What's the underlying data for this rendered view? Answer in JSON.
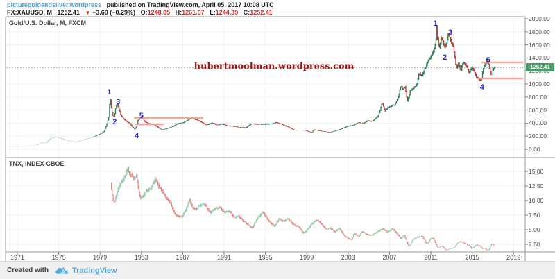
{
  "header": {
    "site": "picturegoldandsilver.wordpress",
    "published": "published on TradingView.com, April 05, 2017 10:08 UTC",
    "symbol": "FX:XAUUSD, M",
    "last": "1252.41",
    "down_triangle": "▼",
    "change": "−3.60 (−0.29%)",
    "open_label": "O:",
    "open": "1248.05",
    "high_label": "H:",
    "high": "1261.07",
    "low_label": "L:",
    "low": "1244.39",
    "close_label": "C:",
    "close": "1252.41"
  },
  "panels": {
    "gold_title": "Gold/U.S. Dollar, M, FXCM",
    "tnx_title": "TNX, INDEX-CBOE",
    "watermark": "hubertmoolman.wordpress.com",
    "current_price_label": "1252.41"
  },
  "footer": {
    "created_with": "Created with",
    "brand": "TradingView"
  },
  "colors": {
    "accent_link": "#47a1dc",
    "ohlc_red": "#cc2b29",
    "chip_green": "#4a9b68",
    "up_candle": "#2a7a52",
    "down_candle": "#a83b33",
    "tnx_up": "#8cc3a4",
    "tnx_down": "#dd837b",
    "level_line": "#f59a91",
    "current_price_line": "#3f9d6f",
    "wave_label": "#2028d4",
    "watermark": "#a31515",
    "grid": "#edf0f3",
    "border": "#9a9a9a"
  },
  "chart_data": [
    {
      "type": "line",
      "title": "Gold/U.S. Dollar, M, FXCM",
      "symbol": "FX:XAUUSD",
      "interval": "M",
      "exchange": "FXCM",
      "xlabel": "",
      "ylabel": "",
      "x_range": [
        1970,
        2020.5
      ],
      "ylim": [
        0,
        2100
      ],
      "y_ticks": [
        2000,
        1800,
        1600,
        1400,
        1200,
        1000,
        800,
        600,
        400,
        200,
        0
      ],
      "x_ticks": [
        1971,
        1975,
        1979,
        1983,
        1987,
        1991,
        1995,
        1999,
        2003,
        2007,
        2011,
        2015,
        2019
      ],
      "grid": true,
      "current_price": 1252.41,
      "series": [
        [
          1970.0,
          36
        ],
        [
          1970.8,
          38
        ],
        [
          1971.5,
          41
        ],
        [
          1972.0,
          46
        ],
        [
          1972.5,
          55
        ],
        [
          1973.0,
          68
        ],
        [
          1973.5,
          100
        ],
        [
          1973.8,
          95
        ],
        [
          1974.3,
          165
        ],
        [
          1974.9,
          185
        ],
        [
          1975.3,
          170
        ],
        [
          1975.7,
          140
        ],
        [
          1976.2,
          128
        ],
        [
          1976.7,
          105
        ],
        [
          1977.2,
          135
        ],
        [
          1977.8,
          160
        ],
        [
          1978.3,
          180
        ],
        [
          1978.8,
          215
        ],
        [
          1979.2,
          240
        ],
        [
          1979.5,
          280
        ],
        [
          1979.75,
          390
        ],
        [
          1979.95,
          510
        ],
        [
          1980.04,
          830
        ],
        [
          1980.15,
          650
        ],
        [
          1980.3,
          520
        ],
        [
          1980.45,
          495
        ],
        [
          1980.6,
          640
        ],
        [
          1980.72,
          700
        ],
        [
          1980.9,
          625
        ],
        [
          1981.1,
          520
        ],
        [
          1981.4,
          460
        ],
        [
          1981.7,
          420
        ],
        [
          1981.95,
          400
        ],
        [
          1982.2,
          345
        ],
        [
          1982.45,
          305
        ],
        [
          1982.6,
          350
        ],
        [
          1982.75,
          440
        ],
        [
          1983.1,
          505
        ],
        [
          1983.4,
          425
        ],
        [
          1983.8,
          390
        ],
        [
          1984.2,
          385
        ],
        [
          1984.6,
          345
        ],
        [
          1985.1,
          295
        ],
        [
          1985.6,
          320
        ],
        [
          1986.1,
          345
        ],
        [
          1986.6,
          395
        ],
        [
          1987.1,
          405
        ],
        [
          1987.6,
          450
        ],
        [
          1987.95,
          485
        ],
        [
          1988.4,
          450
        ],
        [
          1988.9,
          415
        ],
        [
          1989.4,
          370
        ],
        [
          1989.9,
          405
        ],
        [
          1990.4,
          370
        ],
        [
          1990.9,
          385
        ],
        [
          1991.4,
          360
        ],
        [
          1992.0,
          350
        ],
        [
          1992.6,
          335
        ],
        [
          1993.2,
          330
        ],
        [
          1993.7,
          390
        ],
        [
          1994.3,
          380
        ],
        [
          1995.0,
          380
        ],
        [
          1995.7,
          388
        ],
        [
          1996.1,
          412
        ],
        [
          1996.7,
          380
        ],
        [
          1997.3,
          340
        ],
        [
          1997.9,
          290
        ],
        [
          1998.5,
          295
        ],
        [
          1999.0,
          285
        ],
        [
          1999.55,
          255
        ],
        [
          1999.8,
          300
        ],
        [
          2000.2,
          285
        ],
        [
          2000.8,
          270
        ],
        [
          2001.3,
          260
        ],
        [
          2001.8,
          278
        ],
        [
          2002.4,
          310
        ],
        [
          2003.0,
          350
        ],
        [
          2003.6,
          370
        ],
        [
          2004.1,
          410
        ],
        [
          2004.6,
          395
        ],
        [
          2004.95,
          440
        ],
        [
          2005.4,
          425
        ],
        [
          2005.9,
          495
        ],
        [
          2006.1,
          560
        ],
        [
          2006.38,
          715
        ],
        [
          2006.65,
          580
        ],
        [
          2006.9,
          635
        ],
        [
          2007.3,
          665
        ],
        [
          2007.6,
          680
        ],
        [
          2007.9,
          790
        ],
        [
          2008.2,
          975
        ],
        [
          2008.35,
          915
        ],
        [
          2008.6,
          960
        ],
        [
          2008.82,
          725
        ],
        [
          2009.1,
          900
        ],
        [
          2009.4,
          930
        ],
        [
          2009.75,
          1000
        ],
        [
          2009.95,
          1175
        ],
        [
          2010.2,
          1115
        ],
        [
          2010.5,
          1230
        ],
        [
          2010.9,
          1385
        ],
        [
          2011.1,
          1420
        ],
        [
          2011.35,
          1510
        ],
        [
          2011.55,
          1620
        ],
        [
          2011.68,
          1900
        ],
        [
          2011.78,
          1620
        ],
        [
          2011.92,
          1560
        ],
        [
          2012.1,
          1720
        ],
        [
          2012.35,
          1600
        ],
        [
          2012.5,
          1570
        ],
        [
          2012.78,
          1780
        ],
        [
          2013.0,
          1665
        ],
        [
          2013.25,
          1570
        ],
        [
          2013.45,
          1380
        ],
        [
          2013.55,
          1230
        ],
        [
          2013.75,
          1320
        ],
        [
          2013.95,
          1195
        ],
        [
          2014.2,
          1330
        ],
        [
          2014.5,
          1290
        ],
        [
          2014.8,
          1170
        ],
        [
          2015.05,
          1265
        ],
        [
          2015.3,
          1180
        ],
        [
          2015.55,
          1095
        ],
        [
          2015.95,
          1050
        ],
        [
          2016.15,
          1235
        ],
        [
          2016.5,
          1360
        ],
        [
          2016.65,
          1310
        ],
        [
          2016.85,
          1170
        ],
        [
          2016.98,
          1130
        ],
        [
          2017.1,
          1235
        ],
        [
          2017.2,
          1245
        ],
        [
          2017.3,
          1252
        ]
      ],
      "annotations": [
        {
          "label": "1",
          "year": 1979.88,
          "value": 870
        },
        {
          "label": "2",
          "year": 1980.42,
          "value": 410
        },
        {
          "label": "3",
          "year": 1980.75,
          "value": 720
        },
        {
          "label": "4",
          "year": 1982.55,
          "value": 205
        },
        {
          "label": "5",
          "year": 1983.0,
          "value": 515
        },
        {
          "label": "1",
          "year": 2011.45,
          "value": 1930
        },
        {
          "label": "2",
          "year": 2012.35,
          "value": 1405
        },
        {
          "label": "3",
          "year": 2012.9,
          "value": 1790
        },
        {
          "label": "4",
          "year": 2015.95,
          "value": 950
        },
        {
          "label": "5",
          "year": 2016.55,
          "value": 1365
        }
      ],
      "levels": [
        {
          "value": 480,
          "from": 1982.3,
          "to": 1989.0
        },
        {
          "value": 380,
          "from": 1982.4,
          "to": 1985.15
        },
        {
          "value": 1330,
          "from": 2015.9,
          "to": 2019.95
        },
        {
          "value": 1085,
          "from": 2015.55,
          "to": 2019.95
        }
      ]
    },
    {
      "type": "line",
      "title": "TNX, INDEX-CBOE",
      "symbol": "TNX",
      "exchange": "INDEX-CBOE",
      "xlabel": "",
      "ylabel": "",
      "x_range": [
        1970,
        2020.5
      ],
      "ylim": [
        0,
        16.5
      ],
      "y_ticks": [
        15,
        12.5,
        10,
        7.5,
        5,
        2.5
      ],
      "x_ticks": [
        1971,
        1975,
        1979,
        1983,
        1987,
        1991,
        1995,
        1999,
        2003,
        2007,
        2011,
        2015,
        2019
      ],
      "grid": true,
      "series": [
        [
          1980.1,
          12.8
        ],
        [
          1980.25,
          11.0
        ],
        [
          1980.45,
          9.6
        ],
        [
          1980.65,
          10.8
        ],
        [
          1980.95,
          12.6
        ],
        [
          1981.2,
          13.2
        ],
        [
          1981.45,
          14.0
        ],
        [
          1981.6,
          14.8
        ],
        [
          1981.75,
          15.6
        ],
        [
          1981.9,
          14.6
        ],
        [
          1982.1,
          14.4
        ],
        [
          1982.35,
          13.8
        ],
        [
          1982.6,
          14.2
        ],
        [
          1982.8,
          12.0
        ],
        [
          1982.95,
          10.5
        ],
        [
          1983.2,
          10.6
        ],
        [
          1983.6,
          11.7
        ],
        [
          1984.0,
          12.1
        ],
        [
          1984.45,
          13.8
        ],
        [
          1984.8,
          12.3
        ],
        [
          1985.1,
          11.6
        ],
        [
          1985.5,
          10.4
        ],
        [
          1985.9,
          9.6
        ],
        [
          1986.3,
          7.7
        ],
        [
          1986.7,
          7.3
        ],
        [
          1987.0,
          7.2
        ],
        [
          1987.4,
          8.5
        ],
        [
          1987.75,
          10.2
        ],
        [
          1988.0,
          8.8
        ],
        [
          1988.35,
          8.5
        ],
        [
          1988.75,
          9.2
        ],
        [
          1989.2,
          9.4
        ],
        [
          1989.75,
          7.9
        ],
        [
          1990.1,
          8.5
        ],
        [
          1990.65,
          8.9
        ],
        [
          1991.1,
          8.0
        ],
        [
          1991.6,
          8.2
        ],
        [
          1992.05,
          7.1
        ],
        [
          1992.5,
          7.3
        ],
        [
          1993.0,
          6.4
        ],
        [
          1993.8,
          5.3
        ],
        [
          1994.3,
          7.0
        ],
        [
          1994.85,
          8.0
        ],
        [
          1995.4,
          6.5
        ],
        [
          1995.95,
          5.6
        ],
        [
          1996.4,
          6.9
        ],
        [
          1996.8,
          6.4
        ],
        [
          1997.25,
          6.9
        ],
        [
          1997.8,
          5.9
        ],
        [
          1998.3,
          5.5
        ],
        [
          1998.75,
          4.4
        ],
        [
          1999.0,
          4.7
        ],
        [
          1999.5,
          5.9
        ],
        [
          2000.05,
          6.7
        ],
        [
          2000.5,
          6.0
        ],
        [
          2000.95,
          5.1
        ],
        [
          2001.35,
          5.3
        ],
        [
          2001.8,
          4.6
        ],
        [
          2002.2,
          5.3
        ],
        [
          2002.75,
          3.9
        ],
        [
          2003.4,
          3.2
        ],
        [
          2003.65,
          4.4
        ],
        [
          2004.1,
          3.8
        ],
        [
          2004.4,
          4.7
        ],
        [
          2004.9,
          4.2
        ],
        [
          2005.3,
          4.0
        ],
        [
          2005.8,
          4.5
        ],
        [
          2006.4,
          5.2
        ],
        [
          2006.9,
          4.6
        ],
        [
          2007.4,
          5.2
        ],
        [
          2007.95,
          4.0
        ],
        [
          2008.2,
          3.5
        ],
        [
          2008.5,
          4.1
        ],
        [
          2008.95,
          2.1
        ],
        [
          2009.4,
          3.4
        ],
        [
          2009.9,
          3.8
        ],
        [
          2010.25,
          3.9
        ],
        [
          2010.7,
          2.5
        ],
        [
          2011.05,
          3.5
        ],
        [
          2011.3,
          3.6
        ],
        [
          2011.75,
          1.9
        ],
        [
          2012.2,
          2.2
        ],
        [
          2012.55,
          1.45
        ],
        [
          2012.9,
          1.75
        ],
        [
          2013.3,
          1.9
        ],
        [
          2013.65,
          2.7
        ],
        [
          2013.95,
          3.0
        ],
        [
          2014.4,
          2.6
        ],
        [
          2014.85,
          2.2
        ],
        [
          2015.05,
          1.7
        ],
        [
          2015.45,
          2.4
        ],
        [
          2015.8,
          2.2
        ],
        [
          2016.1,
          1.75
        ],
        [
          2016.35,
          1.8
        ],
        [
          2016.55,
          1.4
        ],
        [
          2016.75,
          1.75
        ],
        [
          2016.95,
          2.6
        ],
        [
          2017.1,
          2.4
        ],
        [
          2017.25,
          2.35
        ]
      ]
    }
  ]
}
